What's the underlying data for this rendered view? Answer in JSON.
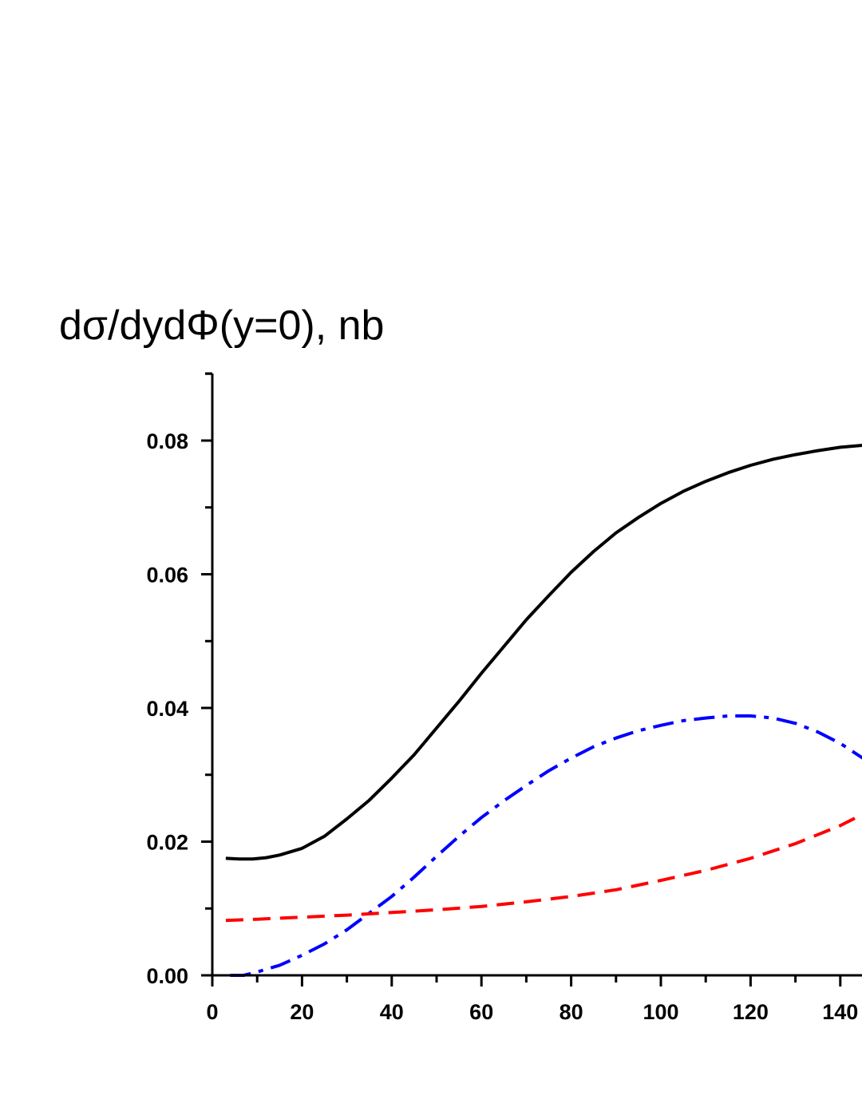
{
  "chart_data": {
    "type": "line",
    "title": "",
    "xlabel": "",
    "ylabel": "dσ/dydΦ(y=0), nb",
    "xlim": [
      0,
      145
    ],
    "ylim": [
      0,
      0.09
    ],
    "x_ticks": [
      0,
      20,
      40,
      60,
      80,
      100,
      120,
      140
    ],
    "x_tick_labels": [
      "0",
      "20",
      "40",
      "60",
      "80",
      "100",
      "120",
      "140"
    ],
    "x_minor_step": 10,
    "y_ticks": [
      0,
      0.02,
      0.04,
      0.06,
      0.08
    ],
    "y_tick_labels": [
      "0.00",
      "0.02",
      "0.04",
      "0.06",
      "0.08"
    ],
    "y_minor_step": 0.01,
    "grid": false,
    "legend": "none",
    "series": [
      {
        "color": "#000000",
        "dash": "solid",
        "x": [
          3,
          6,
          9,
          12,
          15,
          20,
          25,
          30,
          35,
          40,
          45,
          50,
          55,
          60,
          65,
          70,
          75,
          80,
          85,
          90,
          95,
          100,
          105,
          110,
          115,
          120,
          125,
          130,
          135,
          140,
          145
        ],
        "y": [
          0.0175,
          0.0174,
          0.0174,
          0.0176,
          0.018,
          0.019,
          0.0208,
          0.0234,
          0.0262,
          0.0295,
          0.033,
          0.037,
          0.041,
          0.0452,
          0.0492,
          0.0532,
          0.0568,
          0.0603,
          0.0634,
          0.0662,
          0.0685,
          0.0706,
          0.0724,
          0.0739,
          0.0752,
          0.0763,
          0.0772,
          0.0779,
          0.0785,
          0.079,
          0.0793
        ]
      },
      {
        "color": "#0000ff",
        "dash": "dashdot",
        "x": [
          4,
          7,
          10,
          15,
          20,
          25,
          30,
          35,
          40,
          45,
          50,
          55,
          60,
          65,
          70,
          75,
          80,
          85,
          90,
          95,
          100,
          105,
          110,
          115,
          120,
          125,
          130,
          135,
          140,
          145
        ],
        "y": [
          0.0,
          0.0,
          0.0005,
          0.0015,
          0.003,
          0.0047,
          0.0068,
          0.0093,
          0.0118,
          0.0147,
          0.0178,
          0.0208,
          0.0236,
          0.0261,
          0.0284,
          0.0306,
          0.0325,
          0.0342,
          0.0355,
          0.0366,
          0.0374,
          0.0381,
          0.0385,
          0.0388,
          0.0388,
          0.0385,
          0.0377,
          0.0364,
          0.0347,
          0.0325
        ]
      },
      {
        "color": "#ff0000",
        "dash": "dashed",
        "x": [
          3,
          10,
          20,
          30,
          40,
          50,
          60,
          70,
          80,
          90,
          100,
          110,
          120,
          130,
          140,
          145
        ],
        "y": [
          0.0082,
          0.0084,
          0.0087,
          0.009,
          0.0094,
          0.0098,
          0.0103,
          0.011,
          0.0118,
          0.0128,
          0.0142,
          0.0157,
          0.0175,
          0.0197,
          0.0224,
          0.0241
        ]
      }
    ]
  }
}
